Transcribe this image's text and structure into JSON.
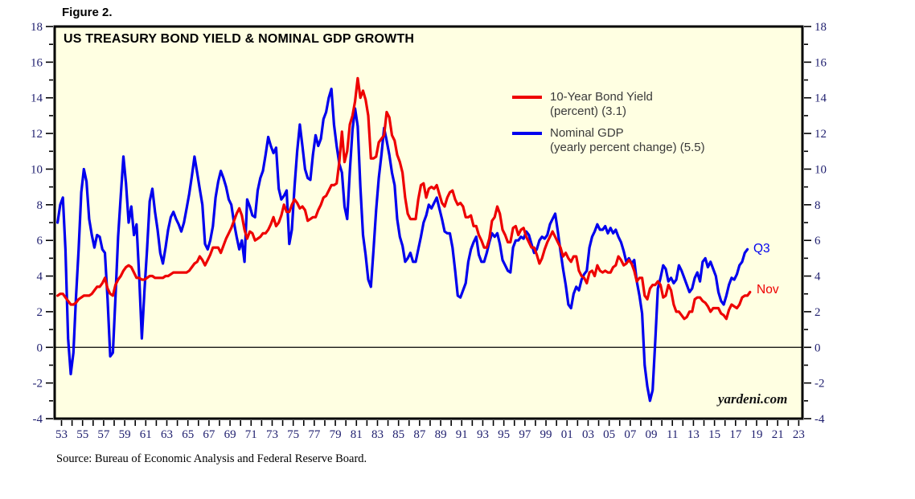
{
  "figure_label": "Figure 2.",
  "chart_title": "US TREASURY BOND YIELD & NOMINAL GDP GROWTH",
  "legend": {
    "entries": [
      {
        "line1": "10-Year Bond Yield",
        "line2": "(percent) (3.1)",
        "color": "#ee0000"
      },
      {
        "line1": "Nominal GDP",
        "line2": "(yearly percent change) (5.5)",
        "color": "#0000ee"
      }
    ]
  },
  "annotations": {
    "gdp_end": "Q3",
    "bond_end": "Nov",
    "watermark": "yardeni.com"
  },
  "source": "Source: Bureau of Economic Analysis and Federal Reserve Board.",
  "chart_data": {
    "type": "line",
    "title": "US TREASURY BOND YIELD & NOMINAL GDP GROWTH",
    "plot_bg": "#FFFFE2",
    "axis_label_color": "#1e1e6e",
    "x_axis": {
      "min_year": 1953,
      "max_year": 2023,
      "minor_tick_step": 1,
      "labeled_every": 2,
      "tick_labels": [
        "53",
        "55",
        "57",
        "59",
        "61",
        "63",
        "65",
        "67",
        "69",
        "71",
        "73",
        "75",
        "77",
        "79",
        "81",
        "83",
        "85",
        "87",
        "89",
        "91",
        "93",
        "95",
        "97",
        "99",
        "01",
        "03",
        "05",
        "07",
        "09",
        "11",
        "13",
        "15",
        "17",
        "19",
        "21",
        "23"
      ]
    },
    "y_axis": {
      "min": -4,
      "max": 18,
      "major_step": 2,
      "minor_step": 1,
      "labels_both_sides": true,
      "zero_line": true,
      "tick_labels": [
        "-4",
        "-2",
        "0",
        "2",
        "4",
        "6",
        "8",
        "10",
        "12",
        "14",
        "16",
        "18"
      ]
    },
    "series": [
      {
        "name": "Nominal GDP (yearly percent change)",
        "color": "#0000ee",
        "end_label": "Q3",
        "end_value": 5.5,
        "start": 1953.125,
        "step": 0.25,
        "values": [
          7.0,
          8.0,
          8.4,
          5.5,
          0.5,
          -1.5,
          -0.3,
          2.8,
          5.5,
          8.7,
          10.0,
          9.3,
          7.2,
          6.3,
          5.6,
          6.3,
          6.2,
          5.5,
          5.3,
          2.7,
          -0.5,
          -0.3,
          2.8,
          6.2,
          8.5,
          10.7,
          9.2,
          7.0,
          7.9,
          6.3,
          6.9,
          4.0,
          0.5,
          3.2,
          5.5,
          8.2,
          8.9,
          7.6,
          6.6,
          5.3,
          4.7,
          5.6,
          6.6,
          7.3,
          7.6,
          7.2,
          6.9,
          6.5,
          7.0,
          7.8,
          8.6,
          9.6,
          10.7,
          9.8,
          8.9,
          8.0,
          5.8,
          5.5,
          6.0,
          6.8,
          8.4,
          9.3,
          9.9,
          9.5,
          9.0,
          8.3,
          8.0,
          7.0,
          6.2,
          5.5,
          6.0,
          4.8,
          8.3,
          7.9,
          7.4,
          7.3,
          8.8,
          9.5,
          9.9,
          10.8,
          11.8,
          11.3,
          10.9,
          11.2,
          8.9,
          8.3,
          8.5,
          8.8,
          5.8,
          6.6,
          9.0,
          11.0,
          12.5,
          11.3,
          10.0,
          9.5,
          9.4,
          10.8,
          11.9,
          11.3,
          11.7,
          12.8,
          13.2,
          14.0,
          14.5,
          12.5,
          11.3,
          10.3,
          9.8,
          7.9,
          7.2,
          9.9,
          12.2,
          13.4,
          12.4,
          9.0,
          6.3,
          5.2,
          3.8,
          3.4,
          5.5,
          7.7,
          9.5,
          10.8,
          12.3,
          11.6,
          10.8,
          9.8,
          9.1,
          7.2,
          6.2,
          5.7,
          4.8,
          5.0,
          5.3,
          4.8,
          4.8,
          5.5,
          6.2,
          7.0,
          7.4,
          8.0,
          7.8,
          8.1,
          8.4,
          7.8,
          7.2,
          6.5,
          6.4,
          6.4,
          5.6,
          4.3,
          2.9,
          2.8,
          3.2,
          3.6,
          4.8,
          5.5,
          5.9,
          6.2,
          5.2,
          4.8,
          4.8,
          5.3,
          5.9,
          6.4,
          6.2,
          6.4,
          5.8,
          4.9,
          4.6,
          4.3,
          4.2,
          5.6,
          6.0,
          6.0,
          6.2,
          6.1,
          6.5,
          6.3,
          5.8,
          5.3,
          5.5,
          6.0,
          6.2,
          6.1,
          6.3,
          6.9,
          7.2,
          7.5,
          6.5,
          5.4,
          4.4,
          3.5,
          2.4,
          2.2,
          3.0,
          3.4,
          3.2,
          3.8,
          4.1,
          4.3,
          5.6,
          6.2,
          6.5,
          6.9,
          6.6,
          6.6,
          6.8,
          6.4,
          6.7,
          6.4,
          6.6,
          6.2,
          5.9,
          5.4,
          4.8,
          5.0,
          4.7,
          4.9,
          3.7,
          2.9,
          1.9,
          -1.0,
          -2.2,
          -3.0,
          -2.4,
          0.3,
          3.3,
          3.9,
          4.6,
          4.4,
          3.7,
          3.9,
          3.6,
          3.8,
          4.6,
          4.3,
          3.9,
          3.5,
          3.1,
          3.3,
          3.9,
          4.2,
          3.7,
          4.8,
          5.0,
          4.5,
          4.8,
          4.4,
          4.0,
          3.1,
          2.6,
          2.4,
          2.9,
          3.5,
          3.9,
          3.8,
          4.1,
          4.6,
          4.8,
          5.3,
          5.5
        ]
      },
      {
        "name": "10-Year Bond Yield (percent)",
        "color": "#ee0000",
        "end_label": "Nov",
        "end_value": 3.1,
        "start": 1953.125,
        "step": 0.25,
        "values": [
          2.9,
          3.0,
          3.0,
          2.8,
          2.6,
          2.4,
          2.4,
          2.5,
          2.7,
          2.8,
          2.9,
          2.9,
          2.9,
          3.0,
          3.2,
          3.4,
          3.4,
          3.6,
          3.9,
          3.3,
          3.0,
          2.9,
          3.5,
          3.8,
          4.0,
          4.3,
          4.5,
          4.6,
          4.5,
          4.2,
          3.9,
          3.9,
          3.8,
          3.8,
          3.9,
          4.0,
          4.0,
          3.9,
          3.9,
          3.9,
          3.9,
          4.0,
          4.0,
          4.1,
          4.2,
          4.2,
          4.2,
          4.2,
          4.2,
          4.2,
          4.3,
          4.5,
          4.7,
          4.8,
          5.1,
          4.9,
          4.6,
          4.9,
          5.2,
          5.6,
          5.6,
          5.6,
          5.3,
          5.7,
          6.1,
          6.4,
          6.7,
          7.1,
          7.5,
          7.8,
          7.4,
          6.6,
          6.1,
          6.5,
          6.4,
          6.0,
          6.1,
          6.2,
          6.4,
          6.4,
          6.6,
          6.9,
          7.3,
          6.8,
          7.0,
          7.4,
          8.0,
          7.6,
          7.6,
          8.0,
          8.3,
          8.1,
          7.8,
          7.9,
          7.7,
          7.1,
          7.2,
          7.3,
          7.3,
          7.7,
          8.0,
          8.4,
          8.5,
          8.8,
          9.1,
          9.1,
          9.2,
          10.4,
          12.1,
          10.4,
          11.0,
          12.5,
          13.0,
          13.8,
          15.1,
          14.0,
          14.4,
          13.9,
          13.0,
          10.6,
          10.6,
          10.7,
          11.5,
          11.7,
          11.9,
          13.2,
          12.9,
          11.9,
          11.6,
          10.8,
          10.4,
          9.8,
          8.4,
          7.5,
          7.2,
          7.2,
          7.2,
          8.3,
          9.1,
          9.2,
          8.4,
          8.9,
          9.0,
          8.9,
          9.1,
          8.6,
          8.1,
          7.9,
          8.4,
          8.7,
          8.8,
          8.3,
          8.0,
          8.1,
          7.9,
          7.3,
          7.3,
          7.4,
          6.8,
          6.8,
          6.3,
          6.0,
          5.6,
          5.6,
          6.1,
          7.1,
          7.3,
          7.9,
          7.5,
          6.6,
          6.3,
          5.9,
          5.9,
          6.7,
          6.8,
          6.3,
          6.6,
          6.7,
          6.2,
          5.9,
          5.6,
          5.6,
          5.2,
          4.7,
          5.0,
          5.5,
          5.9,
          6.2,
          6.5,
          6.2,
          5.9,
          5.6,
          5.1,
          5.3,
          5.0,
          4.8,
          5.1,
          5.1,
          4.3,
          4.0,
          3.9,
          3.6,
          4.2,
          4.3,
          4.0,
          4.6,
          4.3,
          4.2,
          4.3,
          4.2,
          4.2,
          4.5,
          4.6,
          5.1,
          4.9,
          4.6,
          4.7,
          4.9,
          4.7,
          4.3,
          3.7,
          3.9,
          3.9,
          2.9,
          2.7,
          3.3,
          3.5,
          3.5,
          3.7,
          3.5,
          2.8,
          2.9,
          3.5,
          3.2,
          2.4,
          2.0,
          2.0,
          1.8,
          1.6,
          1.7,
          2.0,
          2.0,
          2.7,
          2.8,
          2.8,
          2.6,
          2.5,
          2.3,
          2.0,
          2.2,
          2.2,
          2.2,
          1.9,
          1.8,
          1.6,
          2.1,
          2.4,
          2.3,
          2.2,
          2.4,
          2.8,
          2.9,
          2.9,
          3.1
        ]
      }
    ]
  }
}
